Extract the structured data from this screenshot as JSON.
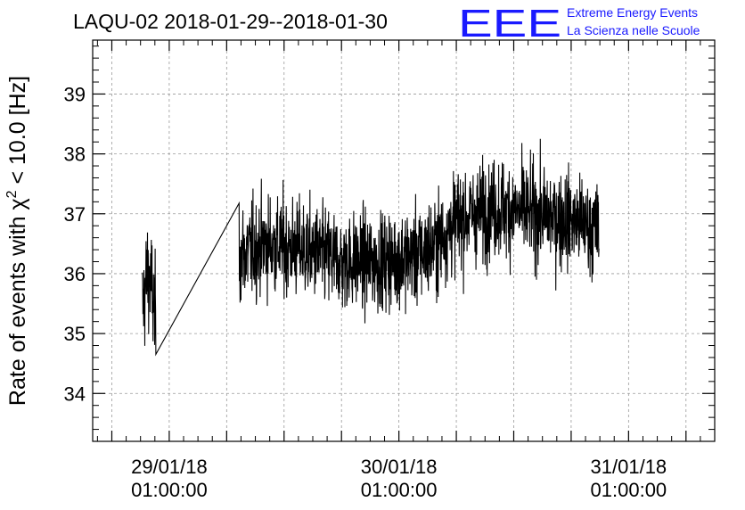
{
  "header": {
    "title": "LAQU-02 2018-01-29--2018-01-30"
  },
  "logo": {
    "mark": "EEE",
    "line1": "Extreme Energy Events",
    "line2": "La Scienza nelle Scuole"
  },
  "chart_data": {
    "type": "line",
    "title": "LAQU-02 2018-01-29--2018-01-30",
    "xlabel": "",
    "ylabel_prefix": "Rate of events with ",
    "ylabel_chi": "χ",
    "ylabel_exp": "2",
    "ylabel_suffix": " < 10.0 [Hz]",
    "xlim_hours": [
      -8.0,
      57.0
    ],
    "ylim": [
      33.2,
      39.9
    ],
    "grid": true,
    "y_ticks": [
      34,
      35,
      36,
      37,
      38,
      39
    ],
    "x_ticks": [
      {
        "hours": 0,
        "date": "29/01/18",
        "time": "01:00:00"
      },
      {
        "hours": 24,
        "date": "30/01/18",
        "time": "01:00:00"
      },
      {
        "hours": 48,
        "date": "31/01/18",
        "time": "01:00:00"
      }
    ],
    "line_color": "#000000",
    "segments": [
      {
        "start_hours": -2.8,
        "end_hours": -1.4,
        "mean": 35.7,
        "noise": 0.75,
        "envelope": [
          [
            -2.8,
            35.4
          ],
          [
            -2.3,
            36.0
          ],
          [
            -1.9,
            35.8
          ],
          [
            -1.4,
            35.2
          ]
        ]
      },
      {
        "start_hours": 7.3,
        "end_hours": 44.9,
        "mean": 36.4,
        "noise": 0.65,
        "envelope": [
          [
            7.3,
            36.3
          ],
          [
            10.0,
            36.5
          ],
          [
            14.0,
            36.4
          ],
          [
            18.0,
            36.2
          ],
          [
            22.0,
            36.2
          ],
          [
            26.0,
            36.3
          ],
          [
            28.0,
            36.5
          ],
          [
            30.0,
            36.9
          ],
          [
            34.0,
            37.1
          ],
          [
            38.0,
            37.0
          ],
          [
            42.0,
            36.9
          ],
          [
            44.9,
            36.7
          ]
        ]
      }
    ]
  }
}
